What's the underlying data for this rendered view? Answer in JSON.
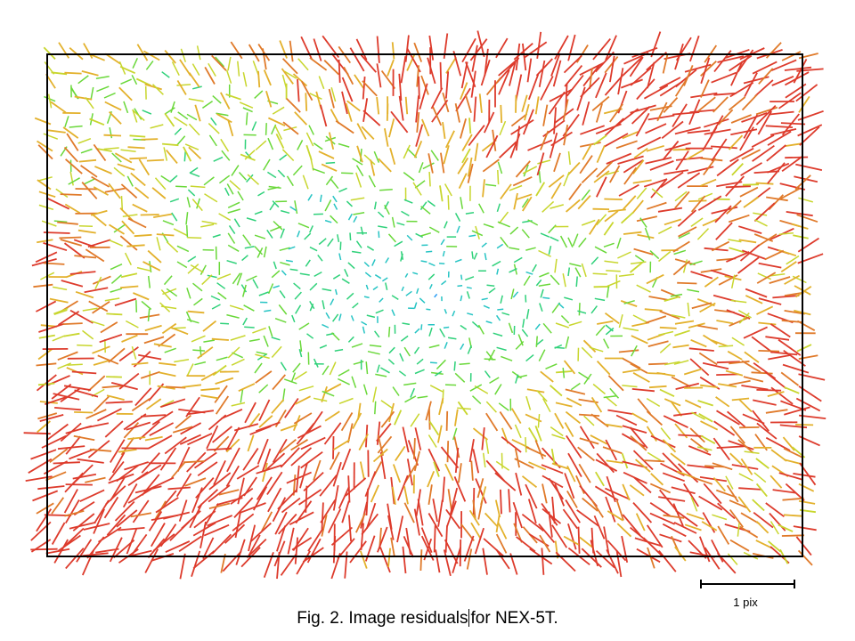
{
  "figure": {
    "caption_part1": "Fig. 2. Image residuals",
    "caption_part2": "for NEX-5T.",
    "scale_bar_label": "1 pix"
  },
  "palette": {
    "frame": "#000000",
    "scale_bar": "#000000",
    "residual_colors": [
      "#2a9df4",
      "#27c4c4",
      "#2fd17a",
      "#6ad83a",
      "#c8d62e",
      "#e3b12c",
      "#e07a2a",
      "#dd3b2c"
    ]
  },
  "residual_pattern": {
    "description_visible": false,
    "low_residual_region": "center",
    "high_residual_regions": [
      "top-center",
      "top-right",
      "left-edge",
      "bottom-left",
      "bottom-center",
      "right-edge"
    ]
  }
}
